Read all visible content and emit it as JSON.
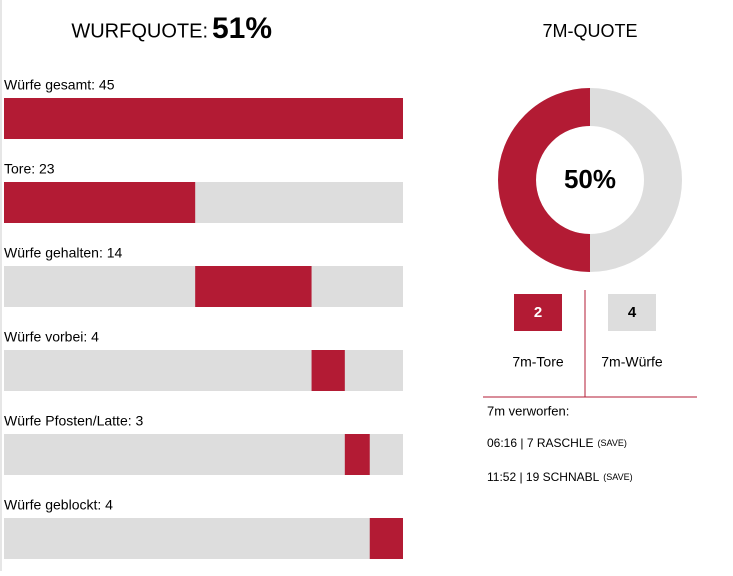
{
  "shots": {
    "title": "WURFQUOTE:",
    "quota": "51%",
    "rows": [
      {
        "label": "Würfe gesamt: 45",
        "value": 45
      },
      {
        "label": "Tore: 23",
        "value": 23
      },
      {
        "label": "Würfe gehalten: 14",
        "value": 14
      },
      {
        "label": "Würfe vorbei: 4",
        "value": 4
      },
      {
        "label": "Würfe Pfosten/Latte: 3",
        "value": 3
      },
      {
        "label": "Würfe geblockt: 4",
        "value": 4
      }
    ]
  },
  "penalty": {
    "title": "7M-QUOTE",
    "percent": 50,
    "percent_label": "50%",
    "goals": 2,
    "goals_label": "7m-Tore",
    "attempts": 4,
    "attempts_label": "7m-Würfe",
    "missed_title": "7m verworfen:",
    "missed": [
      {
        "text": "06:16 | 7 RASCHLE",
        "note": "(SAVE)"
      },
      {
        "text": "11:52 | 19 SCHNABL",
        "note": "(SAVE)"
      }
    ]
  }
}
